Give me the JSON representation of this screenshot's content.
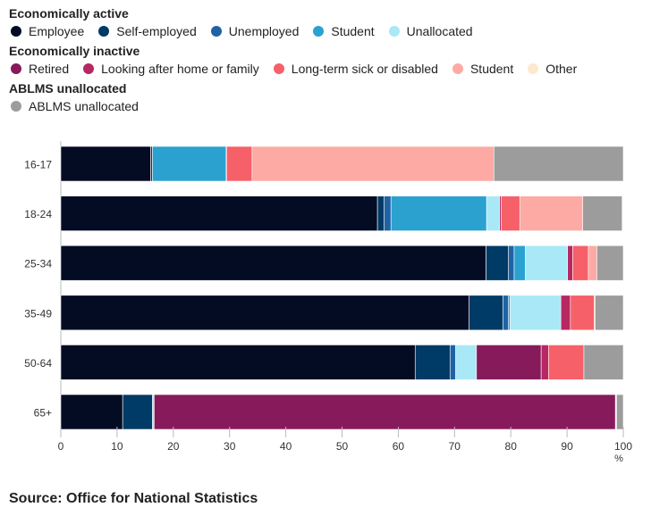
{
  "chart_data": {
    "type": "bar",
    "orientation": "horizontal",
    "stacked": true,
    "categories": [
      "16-17",
      "18-24",
      "25-34",
      "35-49",
      "50-64",
      "65+"
    ],
    "series": [
      {
        "name": "Employee",
        "group": "Economically active",
        "color": "#040c24",
        "values": [
          16,
          56.3,
          75.6,
          72.6,
          63,
          11
        ]
      },
      {
        "name": "Self-employed",
        "group": "Economically active",
        "color": "#003a66",
        "values": [
          0.3,
          1.2,
          4,
          6,
          6.2,
          5.3
        ]
      },
      {
        "name": "Unemployed",
        "group": "Economically active",
        "color": "#1f63a4",
        "values": [
          0,
          1.2,
          1,
          1,
          1,
          0
        ]
      },
      {
        "name": "Student",
        "group": "Economically active",
        "color": "#2ba1d0",
        "values": [
          13,
          17,
          2,
          0.3,
          0,
          0
        ]
      },
      {
        "name": "Unallocated",
        "group": "Economically active",
        "color": "#a9e8f6",
        "values": [
          0,
          2.3,
          7.5,
          9,
          3.7,
          0.3
        ]
      },
      {
        "name": "Retired",
        "group": "Economically inactive",
        "color": "#871a5b",
        "values": [
          0,
          0,
          0,
          0,
          11.5,
          82
        ]
      },
      {
        "name": "Looking after home or family",
        "group": "Economically inactive",
        "color": "#b72762",
        "values": [
          0.2,
          0.3,
          0.9,
          1.7,
          1.3,
          0
        ]
      },
      {
        "name": "Long-term sick or disabled",
        "group": "Economically inactive",
        "color": "#f66068",
        "values": [
          4.5,
          3.3,
          2.8,
          4.2,
          6.3,
          0
        ]
      },
      {
        "name": "Student",
        "group": "Economically inactive",
        "color": "#fdaaa4",
        "values": [
          43,
          11.2,
          1.5,
          0.2,
          0,
          0
        ]
      },
      {
        "name": "Other",
        "group": "Economically inactive",
        "color": "#fde9cf",
        "values": [
          0,
          0,
          0,
          0,
          0,
          0.2
        ]
      },
      {
        "name": "ABLMS unallocated",
        "group": "ABLMS unallocated",
        "color": "#9c9c9c",
        "values": [
          23,
          7,
          4.7,
          5,
          7,
          1.2
        ]
      }
    ],
    "xlim": [
      0,
      100
    ],
    "xticks": [
      "0",
      "10",
      "20",
      "30",
      "40",
      "50",
      "60",
      "70",
      "80",
      "90",
      "100"
    ],
    "xunit": "%",
    "legend_position": "top-left",
    "legend_groups": [
      {
        "title": "Economically active",
        "items": [
          0,
          1,
          2,
          3,
          4
        ]
      },
      {
        "title": "Economically inactive",
        "items": [
          5,
          6,
          7,
          8,
          9
        ]
      },
      {
        "title": "ABLMS unallocated",
        "items": [
          10
        ]
      }
    ]
  },
  "source": "Source: Office for National Statistics"
}
